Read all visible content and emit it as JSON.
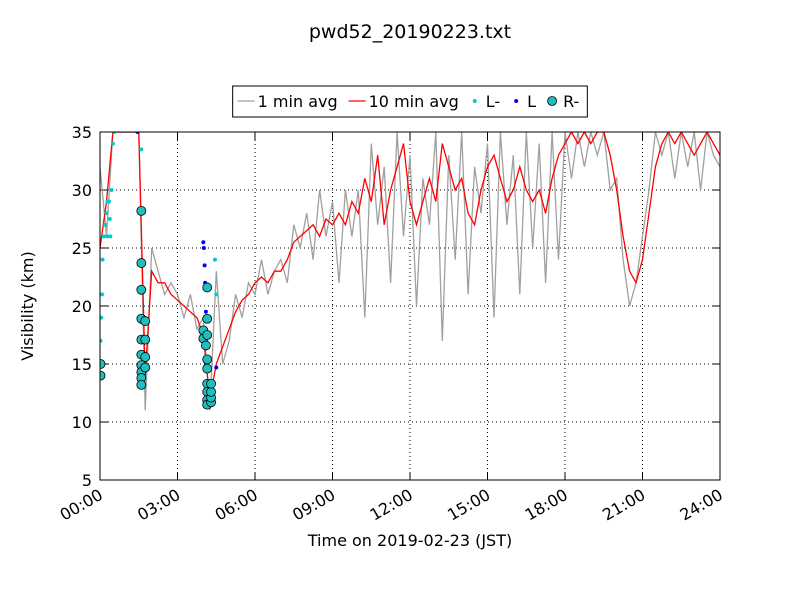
{
  "chart_data": {
    "type": "line",
    "title": "pwd52_20190223.txt",
    "xlabel": "Time on 2019-02-23 (JST)",
    "ylabel": "Visibility (km)",
    "xlim": [
      0,
      24
    ],
    "ylim": [
      5,
      35
    ],
    "xticks": [
      {
        "value": 0,
        "label": "00:00"
      },
      {
        "value": 3,
        "label": "03:00"
      },
      {
        "value": 6,
        "label": "06:00"
      },
      {
        "value": 9,
        "label": "09:00"
      },
      {
        "value": 12,
        "label": "12:00"
      },
      {
        "value": 15,
        "label": "15:00"
      },
      {
        "value": 18,
        "label": "18:00"
      },
      {
        "value": 21,
        "label": "21:00"
      },
      {
        "value": 24,
        "label": "24:00"
      }
    ],
    "yticks": [
      5,
      10,
      15,
      20,
      25,
      30,
      35
    ],
    "grid": true,
    "legend": "top",
    "series": [
      {
        "name": "1 min avg",
        "color": "#a0a0a0",
        "marker": "none",
        "x": [
          0,
          0.25,
          0.5,
          0.75,
          1,
          1.25,
          1.5,
          1.75,
          2,
          2.25,
          2.5,
          2.75,
          3,
          3.25,
          3.5,
          3.75,
          4,
          4.25,
          4.5,
          4.75,
          5,
          5.25,
          5.5,
          5.75,
          6,
          6.25,
          6.5,
          6.75,
          7,
          7.25,
          7.5,
          7.75,
          8,
          8.25,
          8.5,
          8.75,
          9,
          9.25,
          9.5,
          9.75,
          10,
          10.25,
          10.5,
          10.75,
          11,
          11.25,
          11.5,
          11.75,
          12,
          12.25,
          12.5,
          12.75,
          13,
          13.25,
          13.5,
          13.75,
          14,
          14.25,
          14.5,
          14.75,
          15,
          15.25,
          15.5,
          15.75,
          16,
          16.25,
          16.5,
          16.75,
          17,
          17.25,
          17.5,
          17.75,
          18,
          18.25,
          18.5,
          18.75,
          19,
          19.25,
          19.5,
          19.75,
          20,
          20.25,
          20.5,
          20.75,
          21,
          21.25,
          21.5,
          21.75,
          22,
          22.25,
          22.5,
          22.75,
          23,
          23.25,
          23.5,
          23.75,
          24
        ],
        "values": [
          32,
          26,
          35,
          35,
          35,
          35,
          35,
          11,
          25,
          23,
          21,
          22,
          21,
          19,
          21,
          18,
          19,
          11,
          23,
          15,
          17,
          21,
          19,
          22,
          21,
          24,
          21,
          23,
          24,
          22,
          27,
          25,
          28,
          24,
          30,
          26,
          29,
          22,
          30,
          26,
          30,
          19,
          34,
          27,
          32,
          22,
          35,
          26,
          33,
          20,
          31,
          27,
          35,
          17,
          33,
          24,
          35,
          21,
          32,
          28,
          34,
          19,
          35,
          27,
          33,
          21,
          35,
          25,
          34,
          22,
          35,
          24,
          35,
          31,
          35,
          32,
          35,
          33,
          35,
          30,
          31,
          24,
          20,
          22,
          26,
          30,
          35,
          33,
          35,
          31,
          35,
          32,
          35,
          30,
          35,
          33,
          32
        ]
      },
      {
        "name": "10 min avg",
        "color": "#ff0000",
        "marker": "none",
        "x": [
          0,
          0.25,
          0.5,
          0.75,
          1,
          1.25,
          1.5,
          1.75,
          2,
          2.25,
          2.5,
          2.75,
          3,
          3.25,
          3.5,
          3.75,
          4,
          4.25,
          4.5,
          4.75,
          5,
          5.25,
          5.5,
          5.75,
          6,
          6.25,
          6.5,
          6.75,
          7,
          7.25,
          7.5,
          7.75,
          8,
          8.25,
          8.5,
          8.75,
          9,
          9.25,
          9.5,
          9.75,
          10,
          10.25,
          10.5,
          10.75,
          11,
          11.25,
          11.5,
          11.75,
          12,
          12.25,
          12.5,
          12.75,
          13,
          13.25,
          13.5,
          13.75,
          14,
          14.25,
          14.5,
          14.75,
          15,
          15.25,
          15.5,
          15.75,
          16,
          16.25,
          16.5,
          16.75,
          17,
          17.25,
          17.5,
          17.75,
          18,
          18.25,
          18.5,
          18.75,
          19,
          19.25,
          19.5,
          19.75,
          20,
          20.25,
          20.5,
          20.75,
          21,
          21.25,
          21.5,
          21.75,
          22,
          22.25,
          22.5,
          22.75,
          23,
          23.25,
          23.5,
          23.75,
          24
        ],
        "values": [
          25,
          29,
          35,
          35,
          35,
          35,
          35,
          14,
          23,
          22,
          22,
          21,
          20.5,
          20,
          19.5,
          19,
          17.5,
          12,
          15,
          16.5,
          18,
          19.5,
          20.5,
          21,
          22,
          22.5,
          22,
          23,
          23,
          24,
          25.5,
          26,
          26.5,
          27,
          26,
          27.5,
          27,
          28,
          27,
          29,
          28,
          31,
          29,
          33,
          27,
          30,
          32,
          34,
          29,
          27,
          29,
          31,
          29,
          34,
          32,
          30,
          31,
          28,
          27,
          30,
          32,
          33,
          31,
          29,
          30,
          32,
          30,
          29,
          30,
          28,
          31,
          33,
          34,
          35,
          34,
          35,
          34,
          35,
          35,
          33,
          30,
          26,
          23,
          22,
          24,
          28,
          32,
          34,
          35,
          34,
          35,
          34,
          33,
          34,
          35,
          34,
          33
        ]
      },
      {
        "name": "L-",
        "color": "#00cccc",
        "marker": "dot",
        "x": [
          0.02,
          0.05,
          0.08,
          0.1,
          0.15,
          0.2,
          0.25,
          0.28,
          0.3,
          0.35,
          0.38,
          0.4,
          0.45,
          0.5,
          0.55,
          1.6,
          4.45,
          4.5
        ],
        "values": [
          17,
          19,
          21,
          24,
          26,
          27,
          28,
          26,
          29,
          29,
          27.5,
          26,
          30,
          34,
          35,
          33.5,
          24,
          21
        ]
      },
      {
        "name": "L",
        "color": "#0000ff",
        "marker": "dot",
        "x": [
          4.0,
          4.02,
          4.05,
          4.07,
          4.1,
          4.5,
          1.45
        ],
        "values": [
          25.5,
          25,
          23.5,
          22,
          19.5,
          14.7,
          35
        ]
      },
      {
        "name": "R-",
        "color": "#1fbfbf",
        "marker": "circle",
        "x": [
          0.02,
          0.02,
          1.6,
          1.6,
          1.6,
          1.6,
          1.6,
          1.6,
          1.6,
          1.6,
          1.6,
          1.6,
          1.75,
          1.75,
          1.75,
          1.75,
          4.0,
          4.0,
          4.1,
          4.15,
          4.15,
          4.15,
          4.15,
          4.15,
          4.15,
          4.15,
          4.15,
          4.15,
          4.3,
          4.3,
          4.3,
          4.3
        ],
        "values": [
          15,
          14,
          28.2,
          23.7,
          21.4,
          18.9,
          17.1,
          15.8,
          14.9,
          14.3,
          13.8,
          13.2,
          18.7,
          17.1,
          15.6,
          14.7,
          17.9,
          17.2,
          16.6,
          21.6,
          18.9,
          17.5,
          15.4,
          14.6,
          13.3,
          12.6,
          11.9,
          11.5,
          11.7,
          12.1,
          12.6,
          13.3
        ]
      }
    ]
  }
}
